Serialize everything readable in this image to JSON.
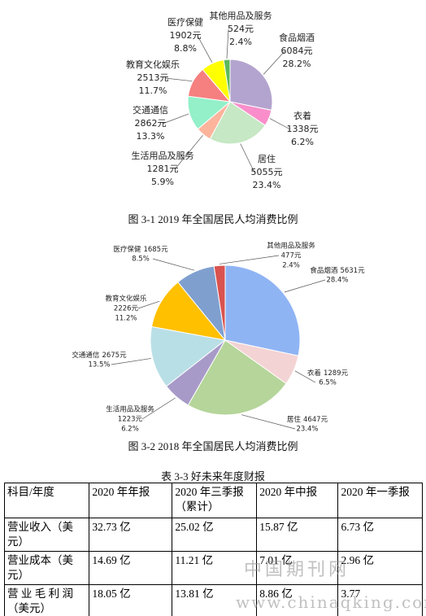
{
  "chart_data": [
    {
      "type": "pie",
      "title": "图 3-1 2019 年全国居民人均消费比例",
      "categories": [
        "食品烟酒",
        "衣着",
        "居住",
        "生活用品及服务",
        "交通通信",
        "教育文化娱乐",
        "医疗保健",
        "其他用品及服务"
      ],
      "values": [
        6084,
        1338,
        5055,
        1281,
        2862,
        2513,
        1902,
        524
      ],
      "value_labels": [
        "6084元",
        "1338元",
        "5055元",
        "1281元",
        "2862元",
        "2513元",
        "1902元",
        "524元"
      ],
      "percents": [
        28.2,
        6.2,
        23.4,
        5.9,
        13.3,
        11.7,
        8.8,
        2.4
      ],
      "percent_labels": [
        "28.2%",
        "6.2%",
        "23.4%",
        "5.9%",
        "13.3%",
        "11.7%",
        "8.8%",
        "2.4%"
      ],
      "colors": [
        "#b3a4cf",
        "#f98ecb",
        "#c6e8c4",
        "#fdb49c",
        "#93f0c9",
        "#f67f80",
        "#ffff00",
        "#5cb85c"
      ]
    },
    {
      "type": "pie",
      "title": "图 3-2 2018 年全国居民人均消费比例",
      "categories": [
        "食品烟酒",
        "衣着",
        "居住",
        "生活用品及服务",
        "交通通信",
        "教育文化娱乐",
        "医疗保健",
        "其他用品及服务"
      ],
      "values": [
        5631,
        1289,
        4647,
        1223,
        2675,
        2226,
        1685,
        477
      ],
      "value_labels": [
        "5631元",
        "1289元",
        "4647元",
        "1223元",
        "2675元",
        "2226元",
        "1685元",
        "477元"
      ],
      "percents": [
        28.4,
        6.5,
        23.4,
        6.2,
        13.5,
        11.2,
        8.5,
        2.4
      ],
      "percent_labels": [
        "28.4%",
        "6.5%",
        "23.4%",
        "6.2%",
        "13.5%",
        "11.2%",
        "8.5%",
        "2.4%"
      ],
      "colors": [
        "#8fb4f4",
        "#f3d3d3",
        "#b5d59a",
        "#a89ac8",
        "#b9dfe6",
        "#ffc000",
        "#7f9fcf",
        "#d9534f"
      ]
    }
  ],
  "table": {
    "caption": "表 3-3 好未来年度财报",
    "rows": [
      [
        "科目/年度",
        "2020 年年报",
        "2020 年三季报（累计）",
        "2020 年中报",
        "2020 年一季报"
      ],
      [
        "营业收入（美元）",
        "32.73 亿",
        "25.02 亿",
        "15.87 亿",
        "6.73 亿"
      ],
      [
        "营业成本（美元）",
        "14.69 亿",
        "11.21 亿",
        "7.01 亿",
        "2.96 亿"
      ],
      [
        "营 业 毛 利 润（美元）",
        "18.05 亿",
        "13.81 亿",
        "8.86 亿",
        "3.77"
      ]
    ]
  },
  "watermark": [
    "中国期刊网",
    "www.chinaqking.com"
  ]
}
